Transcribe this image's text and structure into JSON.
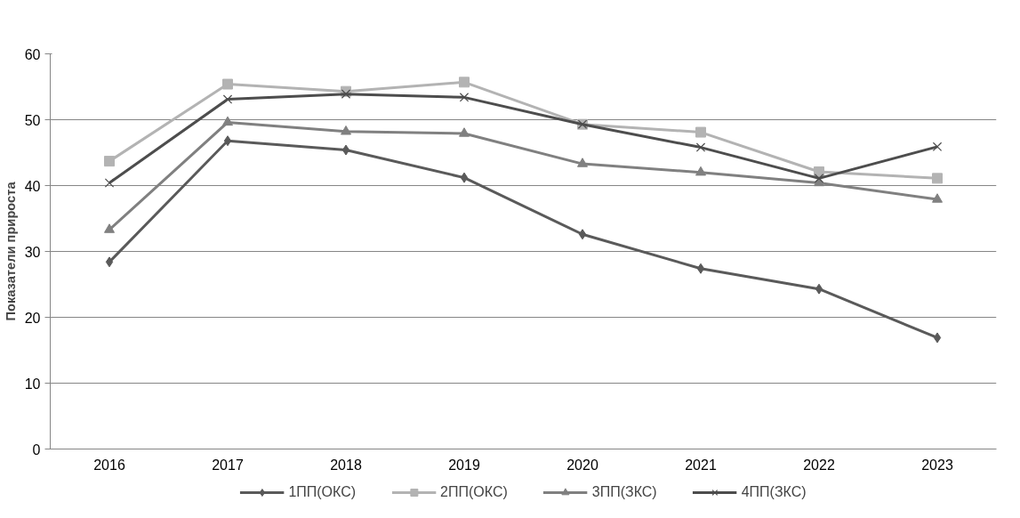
{
  "chart_data": {
    "type": "line",
    "ylabel": "Показатели прироста",
    "categories": [
      "2016",
      "2017",
      "2018",
      "2019",
      "2020",
      "2021",
      "2022",
      "2023"
    ],
    "series": [
      {
        "name": "1ПП(ОКС)",
        "color": "#5a5a5a",
        "marker": "diamond",
        "values": [
          28.4,
          46.8,
          45.4,
          41.2,
          32.6,
          27.4,
          24.3,
          16.9
        ]
      },
      {
        "name": "2ПП(ОКС)",
        "color": "#b3b3b3",
        "marker": "square",
        "values": [
          43.7,
          55.4,
          54.3,
          55.7,
          49.3,
          48.1,
          42.1,
          41.1
        ]
      },
      {
        "name": "3ПП(ЗКС)",
        "color": "#808080",
        "marker": "triangle",
        "values": [
          33.3,
          49.6,
          48.2,
          47.9,
          43.3,
          42.0,
          40.4,
          37.9
        ]
      },
      {
        "name": "4ПП(ЗКС)",
        "color": "#4d4d4d",
        "marker": "cross",
        "values": [
          40.4,
          53.1,
          53.9,
          53.4,
          49.3,
          45.8,
          41.1,
          45.9
        ]
      }
    ],
    "ylim": [
      0,
      60
    ],
    "yticks": [
      0,
      10,
      20,
      30,
      40,
      50,
      60
    ],
    "grid": "y",
    "legend": "bottom",
    "line_style": "solid"
  }
}
